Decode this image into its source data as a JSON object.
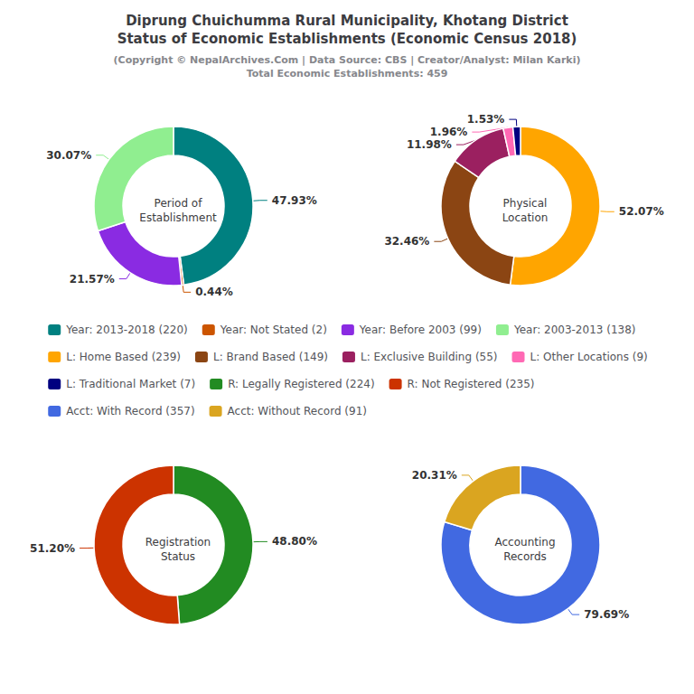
{
  "title": "Diprung Chuichumma Rural Municipality, Khotang District\nStatus of Economic Establishments (Economic Census 2018)",
  "subtitle": "(Copyright © NepalArchives.Com | Data Source: CBS | Creator/Analyst: Milan Karki)\nTotal Economic Establishments: 459",
  "legend": "center",
  "chart_data": [
    {
      "type": "pie",
      "title": "Period of\nEstablishment",
      "categories": [
        "Year: 2013-2018 (220)",
        "Year: Not Stated (2)",
        "Year: Before 2003 (99)",
        "Year: 2003-2013 (138)"
      ],
      "values": [
        47.93,
        0.44,
        21.57,
        30.07
      ],
      "value_labels": [
        "47.93%",
        "0.44%",
        "21.57%",
        "30.07%"
      ],
      "colors": [
        "#008080",
        "#CC5500",
        "#8A2BE2",
        "#90EE90"
      ],
      "data_labels": true
    },
    {
      "type": "pie",
      "title": "Physical\nLocation",
      "categories": [
        "L: Home Based (239)",
        "L: Brand Based (149)",
        "L: Exclusive Building (55)",
        "L: Other Locations (9)",
        "L: Traditional Market (7)"
      ],
      "values": [
        52.07,
        32.46,
        11.98,
        1.96,
        1.53
      ],
      "value_labels": [
        "52.07%",
        "32.46%",
        "11.98%",
        "1.96%",
        "1.53%"
      ],
      "colors": [
        "#FFA500",
        "#8B4513",
        "#9B2060",
        "#FF69B4",
        "#000080"
      ],
      "data_labels": true
    },
    {
      "type": "pie",
      "title": "Registration\nStatus",
      "categories": [
        "R: Legally Registered (224)",
        "R: Not Registered (235)"
      ],
      "values": [
        48.8,
        51.2
      ],
      "value_labels": [
        "48.80%",
        "51.20%"
      ],
      "colors": [
        "#228B22",
        "#CC3300"
      ],
      "data_labels": true
    },
    {
      "type": "pie",
      "title": "Accounting\nRecords",
      "categories": [
        "Acct: With Record (357)",
        "Acct: Without Record (91)"
      ],
      "values": [
        79.69,
        20.31
      ],
      "value_labels": [
        "79.69%",
        "20.31%"
      ],
      "colors": [
        "#4169E1",
        "#DAA520"
      ],
      "data_labels": true
    }
  ]
}
